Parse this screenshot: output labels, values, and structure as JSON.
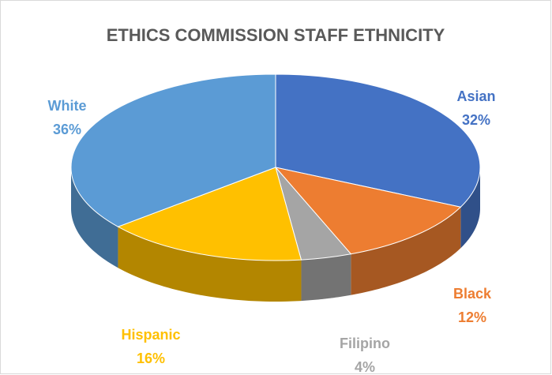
{
  "chart_data": {
    "type": "pie",
    "title": "ETHICS COMMISSION STAFF ETHNICITY",
    "categories": [
      "Asian",
      "Black",
      "Filipino",
      "Hispanic",
      "White"
    ],
    "values": [
      32,
      12,
      4,
      16,
      36
    ],
    "value_labels": [
      "32%",
      "12%",
      "4%",
      "16%",
      "36%"
    ],
    "colors": [
      "#4472c4",
      "#ed7d31",
      "#a5a5a5",
      "#ffc000",
      "#5b9bd5"
    ]
  }
}
